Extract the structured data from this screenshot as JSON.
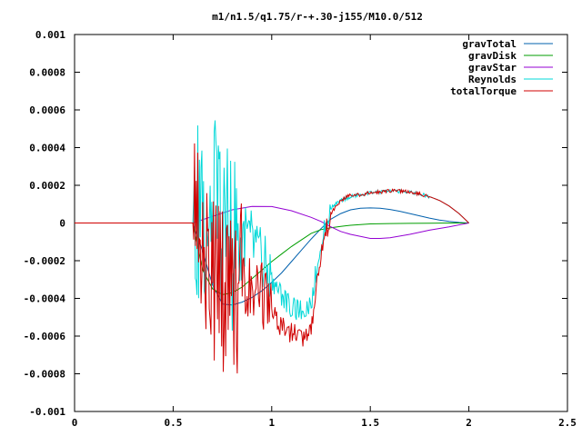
{
  "chart_data": {
    "type": "line",
    "title": "m1/n1.5/q1.75/r-+.30-j155/M10.0/512",
    "xlabel": "",
    "ylabel": "",
    "xlim": [
      0,
      2.5
    ],
    "ylim": [
      -0.001,
      0.001
    ],
    "xticks": [
      0,
      0.5,
      1,
      1.5,
      2,
      2.5
    ],
    "xtick_labels": [
      "0",
      "0.5",
      "1",
      "1.5",
      "2",
      "2.5"
    ],
    "yticks": [
      0.001,
      0.0008,
      0.0006,
      0.0004,
      0.0002,
      0,
      -0.0002,
      -0.0004,
      -0.0006,
      -0.0008,
      -0.001
    ],
    "ytick_labels": [
      "0.001",
      "0.0008",
      "0.0006",
      "0.0004",
      "0.0002",
      "0",
      "-0.0002",
      "-0.0004",
      "-0.0006",
      "-0.0008",
      "-0.001"
    ],
    "grid": false,
    "legend_position": "top-right",
    "series": [
      {
        "name": "gravTotal",
        "color": "#0060ad",
        "x": [
          0,
          0.6,
          0.65,
          0.7,
          0.75,
          0.8,
          0.85,
          0.9,
          0.95,
          1.0,
          1.05,
          1.1,
          1.15,
          1.2,
          1.25,
          1.3,
          1.35,
          1.4,
          1.45,
          1.5,
          1.55,
          1.6,
          1.65,
          1.7,
          1.75,
          1.8,
          1.85,
          1.9,
          1.95,
          2.0
        ],
        "y": [
          0,
          0,
          -0.00015,
          -0.00033,
          -0.00043,
          -0.000435,
          -0.00042,
          -0.000395,
          -0.00036,
          -0.000315,
          -0.000265,
          -0.000205,
          -0.000145,
          -8.5e-05,
          -3e-05,
          2e-05,
          5e-05,
          7e-05,
          7.8e-05,
          8e-05,
          7.8e-05,
          7.2e-05,
          6.2e-05,
          5e-05,
          3.8e-05,
          2.6e-05,
          1.6e-05,
          8e-06,
          3e-06,
          0
        ]
      },
      {
        "name": "gravDisk",
        "color": "#009e00",
        "x": [
          0,
          0.6,
          0.65,
          0.7,
          0.75,
          0.8,
          0.85,
          0.9,
          0.95,
          1.0,
          1.05,
          1.1,
          1.15,
          1.2,
          1.25,
          1.3,
          1.35,
          1.4,
          1.45,
          1.5,
          1.6,
          1.7,
          1.8,
          1.9,
          2.0
        ],
        "y": [
          0,
          0,
          -0.00025,
          -0.00035,
          -0.00038,
          -0.00037,
          -0.00034,
          -0.000295,
          -0.00025,
          -0.000205,
          -0.000165,
          -0.000125,
          -9e-05,
          -5.5e-05,
          -3.5e-05,
          -2.5e-05,
          -1.8e-05,
          -1.2e-05,
          -8e-06,
          -5e-06,
          -3e-06,
          -2e-06,
          -1e-06,
          0,
          0
        ]
      },
      {
        "name": "gravStar",
        "color": "#9400d3",
        "x": [
          0,
          0.6,
          0.7,
          0.8,
          0.9,
          1.0,
          1.1,
          1.2,
          1.25,
          1.3,
          1.35,
          1.4,
          1.5,
          1.55,
          1.6,
          1.7,
          1.8,
          1.9,
          2.0
        ],
        "y": [
          0,
          0,
          3.5e-05,
          7e-05,
          8.8e-05,
          8.7e-05,
          6.5e-05,
          3e-05,
          8e-06,
          -2e-05,
          -4.5e-05,
          -6e-05,
          -8.2e-05,
          -8.2e-05,
          -7.8e-05,
          -6e-05,
          -3.8e-05,
          -2e-05,
          0
        ]
      },
      {
        "name": "Reynolds",
        "color": "#00d8d8",
        "x": [
          0,
          0.6,
          0.65,
          0.7,
          0.75,
          0.8,
          0.85,
          0.9,
          0.95,
          1.0,
          1.05,
          1.1,
          1.15,
          1.2,
          1.25,
          1.3,
          1.35,
          1.4,
          1.45,
          1.5,
          1.55,
          1.6,
          1.65,
          1.7,
          1.75,
          1.8,
          1.85,
          1.9,
          1.95,
          2.0
        ],
        "y": [
          0,
          0,
          5e-05,
          0.0001,
          5e-05,
          -0.0001,
          -5e-05,
          -0.0001,
          -0.00022,
          -0.0003,
          -0.00038,
          -0.00045,
          -0.00047,
          -0.00042,
          -0.0001,
          8e-05,
          0.00012,
          0.00014,
          0.00015,
          0.00016,
          0.000165,
          0.00017,
          0.000168,
          0.000165,
          0.000155,
          0.00014,
          0.00012,
          9e-05,
          5e-05,
          0
        ]
      },
      {
        "name": "totalTorque",
        "color": "#d00000",
        "x": [
          0,
          0.6,
          0.65,
          0.7,
          0.75,
          0.8,
          0.85,
          0.9,
          0.95,
          1.0,
          1.05,
          1.1,
          1.15,
          1.2,
          1.25,
          1.3,
          1.35,
          1.4,
          1.45,
          1.5,
          1.55,
          1.6,
          1.65,
          1.7,
          1.75,
          1.8,
          1.85,
          1.9,
          1.95,
          2.0
        ],
        "y": [
          0,
          0,
          -0.0002,
          -0.00025,
          -0.0003,
          -0.0004,
          -0.00035,
          -0.00032,
          -0.00038,
          -0.00048,
          -0.00055,
          -0.00058,
          -0.00061,
          -0.00055,
          -0.00015,
          5e-05,
          0.00012,
          0.00015,
          0.00015,
          0.00016,
          0.000165,
          0.00017,
          0.00017,
          0.000165,
          0.000155,
          0.00014,
          0.00012,
          9e-05,
          5e-05,
          0
        ]
      }
    ]
  }
}
